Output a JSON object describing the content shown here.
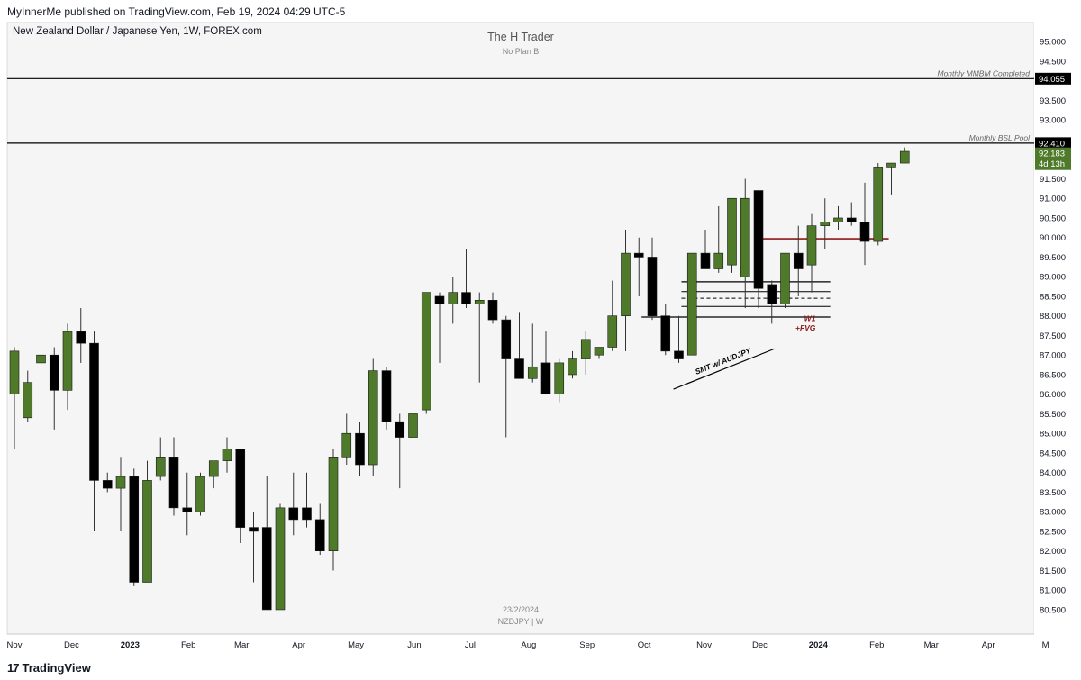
{
  "header": {
    "publisher_line": "MyInnerMe published on TradingView.com, Feb 19, 2024 04:29 UTC-5"
  },
  "footer": {
    "brand_logo": "17",
    "brand_name": "TradingView"
  },
  "colors": {
    "bull": "#4e7a2a",
    "bear": "#000000",
    "wick": "#333333",
    "plot_bg": "#f5f5f5",
    "level_red": "#8b1a1a",
    "label_dark": "#000000",
    "label_green": "#4e7a2a"
  },
  "chart_data": {
    "type": "candlestick",
    "symbol_title": "New Zealand Dollar / Japanese Yen, 1W, FOREX.com",
    "watermark_title": "The H Trader",
    "watermark_subtitle": "No Plan B",
    "bottom_watermark_date": "23/2/2024",
    "bottom_watermark_symbol": "NZDJPY | W",
    "y_ticks": [
      "95.000",
      "94.500",
      "93.500",
      "93.000",
      "92.000",
      "91.500",
      "91.000",
      "90.500",
      "90.000",
      "89.500",
      "89.000",
      "88.500",
      "88.000",
      "87.500",
      "87.000",
      "86.500",
      "86.000",
      "85.500",
      "85.000",
      "84.500",
      "84.000",
      "83.500",
      "83.000",
      "82.500",
      "82.000",
      "81.500",
      "81.000",
      "80.500"
    ],
    "ylim": [
      80.2,
      95.35
    ],
    "x_ticks": [
      {
        "label": "Nov",
        "week": 0
      },
      {
        "label": "Dec",
        "week": 4.3
      },
      {
        "label": "2023",
        "week": 8.7
      },
      {
        "label": "Feb",
        "week": 13.1
      },
      {
        "label": "Mar",
        "week": 17.1
      },
      {
        "label": "Apr",
        "week": 21.4
      },
      {
        "label": "May",
        "week": 25.7
      },
      {
        "label": "Jun",
        "week": 30.1
      },
      {
        "label": "Jul",
        "week": 34.3
      },
      {
        "label": "Aug",
        "week": 38.7
      },
      {
        "label": "Sep",
        "week": 43.1
      },
      {
        "label": "Oct",
        "week": 47.4
      },
      {
        "label": "Nov",
        "week": 51.9
      },
      {
        "label": "Dec",
        "week": 56.1
      },
      {
        "label": "2024",
        "week": 60.5
      },
      {
        "label": "Feb",
        "week": 64.9
      },
      {
        "label": "Mar",
        "week": 69.0
      },
      {
        "label": "Apr",
        "week": 73.3
      },
      {
        "label": "M",
        "week": 77.6
      }
    ],
    "candles": [
      {
        "o": 86.0,
        "h": 87.2,
        "l": 84.6,
        "c": 87.1
      },
      {
        "o": 85.4,
        "h": 86.6,
        "l": 85.3,
        "c": 86.3
      },
      {
        "o": 86.8,
        "h": 87.5,
        "l": 86.7,
        "c": 87.0
      },
      {
        "o": 87.0,
        "h": 87.2,
        "l": 85.1,
        "c": 86.1
      },
      {
        "o": 86.1,
        "h": 87.8,
        "l": 85.6,
        "c": 87.6
      },
      {
        "o": 87.6,
        "h": 88.2,
        "l": 86.8,
        "c": 87.3
      },
      {
        "o": 87.3,
        "h": 87.6,
        "l": 82.5,
        "c": 83.8
      },
      {
        "o": 83.8,
        "h": 84.0,
        "l": 83.5,
        "c": 83.6
      },
      {
        "o": 83.6,
        "h": 84.4,
        "l": 82.5,
        "c": 83.9
      },
      {
        "o": 83.9,
        "h": 84.1,
        "l": 81.1,
        "c": 81.2
      },
      {
        "o": 81.2,
        "h": 84.3,
        "l": 81.2,
        "c": 83.8
      },
      {
        "o": 83.9,
        "h": 84.9,
        "l": 83.8,
        "c": 84.4
      },
      {
        "o": 84.4,
        "h": 84.9,
        "l": 82.9,
        "c": 83.1
      },
      {
        "o": 83.1,
        "h": 84.0,
        "l": 82.4,
        "c": 83.0
      },
      {
        "o": 83.0,
        "h": 84.0,
        "l": 82.9,
        "c": 83.9
      },
      {
        "o": 83.9,
        "h": 84.2,
        "l": 83.6,
        "c": 84.3
      },
      {
        "o": 84.3,
        "h": 84.9,
        "l": 84.0,
        "c": 84.6
      },
      {
        "o": 84.6,
        "h": 84.6,
        "l": 82.2,
        "c": 82.6
      },
      {
        "o": 82.6,
        "h": 83.0,
        "l": 81.2,
        "c": 82.5
      },
      {
        "o": 82.6,
        "h": 83.9,
        "l": 80.5,
        "c": 80.5
      },
      {
        "o": 80.5,
        "h": 83.2,
        "l": 80.5,
        "c": 83.1
      },
      {
        "o": 83.1,
        "h": 84.0,
        "l": 82.4,
        "c": 82.8
      },
      {
        "o": 83.1,
        "h": 84.0,
        "l": 82.6,
        "c": 82.8
      },
      {
        "o": 82.8,
        "h": 83.2,
        "l": 81.9,
        "c": 82.0
      },
      {
        "o": 82.0,
        "h": 84.6,
        "l": 81.5,
        "c": 84.4
      },
      {
        "o": 84.4,
        "h": 85.5,
        "l": 84.2,
        "c": 85.0
      },
      {
        "o": 85.0,
        "h": 85.3,
        "l": 83.9,
        "c": 84.2
      },
      {
        "o": 84.2,
        "h": 86.9,
        "l": 83.9,
        "c": 86.6
      },
      {
        "o": 86.6,
        "h": 86.7,
        "l": 85.1,
        "c": 85.3
      },
      {
        "o": 85.3,
        "h": 85.5,
        "l": 83.6,
        "c": 84.9
      },
      {
        "o": 84.9,
        "h": 85.7,
        "l": 84.7,
        "c": 85.5
      },
      {
        "o": 85.6,
        "h": 88.6,
        "l": 85.5,
        "c": 88.6
      },
      {
        "o": 88.5,
        "h": 88.6,
        "l": 86.8,
        "c": 88.3
      },
      {
        "o": 88.3,
        "h": 89.0,
        "l": 87.8,
        "c": 88.6
      },
      {
        "o": 88.6,
        "h": 89.7,
        "l": 88.2,
        "c": 88.3
      },
      {
        "o": 88.3,
        "h": 88.6,
        "l": 86.3,
        "c": 88.4
      },
      {
        "o": 88.4,
        "h": 88.6,
        "l": 87.8,
        "c": 87.9
      },
      {
        "o": 87.9,
        "h": 88.0,
        "l": 84.9,
        "c": 86.9
      },
      {
        "o": 86.9,
        "h": 88.1,
        "l": 86.4,
        "c": 86.4
      },
      {
        "o": 86.4,
        "h": 87.8,
        "l": 86.3,
        "c": 86.7
      },
      {
        "o": 86.8,
        "h": 87.6,
        "l": 86.0,
        "c": 86.0
      },
      {
        "o": 86.0,
        "h": 86.9,
        "l": 85.8,
        "c": 86.8
      },
      {
        "o": 86.5,
        "h": 87.1,
        "l": 86.4,
        "c": 86.9
      },
      {
        "o": 86.9,
        "h": 87.6,
        "l": 86.5,
        "c": 87.4
      },
      {
        "o": 87.0,
        "h": 87.2,
        "l": 86.9,
        "c": 87.2
      },
      {
        "o": 87.2,
        "h": 88.9,
        "l": 87.1,
        "c": 88.0
      },
      {
        "o": 88.0,
        "h": 90.2,
        "l": 87.1,
        "c": 89.6
      },
      {
        "o": 89.6,
        "h": 90.0,
        "l": 88.5,
        "c": 89.5
      },
      {
        "o": 89.5,
        "h": 90.0,
        "l": 87.9,
        "c": 88.0
      },
      {
        "o": 88.0,
        "h": 88.3,
        "l": 87.0,
        "c": 87.1
      },
      {
        "o": 87.1,
        "h": 88.0,
        "l": 86.8,
        "c": 86.9
      },
      {
        "o": 87.0,
        "h": 89.6,
        "l": 87.0,
        "c": 89.6
      },
      {
        "o": 89.6,
        "h": 90.2,
        "l": 89.2,
        "c": 89.2
      },
      {
        "o": 89.2,
        "h": 90.8,
        "l": 89.1,
        "c": 89.6
      },
      {
        "o": 89.3,
        "h": 91.0,
        "l": 89.1,
        "c": 91.0
      },
      {
        "o": 89.0,
        "h": 91.5,
        "l": 88.2,
        "c": 91.0
      },
      {
        "o": 91.2,
        "h": 91.2,
        "l": 88.2,
        "c": 88.7
      },
      {
        "o": 88.8,
        "h": 88.9,
        "l": 87.8,
        "c": 88.3
      },
      {
        "o": 88.3,
        "h": 89.6,
        "l": 88.2,
        "c": 89.6
      },
      {
        "o": 89.6,
        "h": 90.3,
        "l": 88.5,
        "c": 89.2
      },
      {
        "o": 89.3,
        "h": 90.6,
        "l": 88.6,
        "c": 90.3
      },
      {
        "o": 90.3,
        "h": 91.0,
        "l": 89.7,
        "c": 90.4
      },
      {
        "o": 90.4,
        "h": 90.8,
        "l": 90.2,
        "c": 90.5
      },
      {
        "o": 90.5,
        "h": 90.9,
        "l": 90.3,
        "c": 90.4
      },
      {
        "o": 90.4,
        "h": 91.4,
        "l": 89.3,
        "c": 89.9
      },
      {
        "o": 89.9,
        "h": 91.9,
        "l": 89.8,
        "c": 91.8
      },
      {
        "o": 91.8,
        "h": 91.9,
        "l": 91.1,
        "c": 91.9
      },
      {
        "o": 91.9,
        "h": 92.3,
        "l": 91.9,
        "c": 92.2
      }
    ],
    "levels": [
      {
        "price": 94.055,
        "label": "Monthly MMBM Completed",
        "tag": "94.055"
      },
      {
        "price": 92.41,
        "label": "Monthly BSL Pool",
        "tag": "92.410"
      }
    ],
    "current_price": {
      "tag": "92.183",
      "countdown": "4d 13h"
    },
    "annotations": {
      "fvg_label_line1": "W1",
      "fvg_label_line2": "+FVG",
      "smt_label": "SMT w/ AUDJPY"
    }
  }
}
